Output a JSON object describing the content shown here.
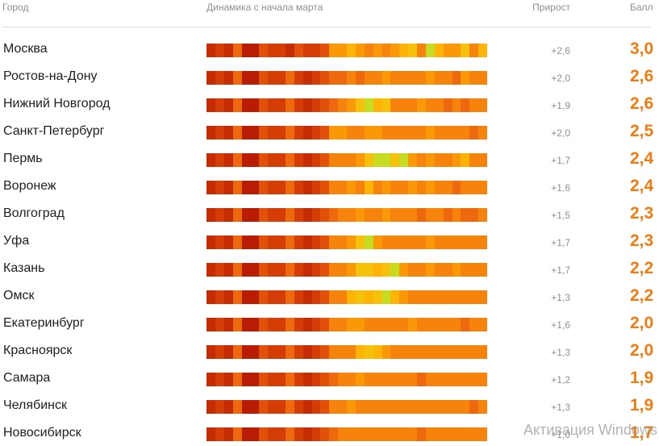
{
  "header": {
    "city": "Город",
    "dynamics": "Динамика с начала марта",
    "growth": "Прирост",
    "score": "Балл"
  },
  "colors": {
    "score": "#f07c10",
    "palette": [
      "#b81d04",
      "#c62c04",
      "#d43d06",
      "#e2510a",
      "#ee690e",
      "#f5830c",
      "#fb9808",
      "#fdb406",
      "#f5c10a",
      "#c5dc22"
    ]
  },
  "rows": [
    {
      "city": "Москва",
      "growth": "+2,6",
      "score": "3,0",
      "cells": [
        1,
        2,
        1,
        4,
        0,
        0,
        3,
        2,
        2,
        1,
        3,
        2,
        2,
        3,
        6,
        6,
        7,
        6,
        5,
        6,
        5,
        6,
        7,
        8,
        5,
        9,
        7,
        6,
        6,
        8,
        5,
        7
      ]
    },
    {
      "city": "Ростов-на-Дону",
      "growth": "+2,0",
      "score": "2,6",
      "cells": [
        1,
        2,
        1,
        4,
        0,
        0,
        3,
        2,
        2,
        4,
        2,
        1,
        2,
        3,
        4,
        4,
        5,
        4,
        5,
        5,
        6,
        5,
        5,
        5,
        5,
        6,
        5,
        5,
        4,
        6,
        5,
        5
      ]
    },
    {
      "city": "Нижний Новгород",
      "growth": "+1,9",
      "score": "2,6",
      "cells": [
        1,
        2,
        1,
        4,
        0,
        0,
        3,
        2,
        2,
        4,
        2,
        1,
        2,
        3,
        4,
        5,
        6,
        8,
        9,
        7,
        8,
        5,
        5,
        5,
        6,
        5,
        5,
        4,
        5,
        4,
        5,
        5
      ]
    },
    {
      "city": "Санкт-Петербург",
      "growth": "+2,0",
      "score": "2,5",
      "cells": [
        1,
        2,
        1,
        4,
        0,
        0,
        3,
        2,
        2,
        4,
        2,
        1,
        2,
        3,
        6,
        6,
        5,
        5,
        6,
        6,
        5,
        5,
        5,
        5,
        5,
        6,
        5,
        5,
        5,
        5,
        4,
        5
      ]
    },
    {
      "city": "Пермь",
      "growth": "+1,7",
      "score": "2,4",
      "cells": [
        1,
        2,
        1,
        4,
        0,
        0,
        3,
        2,
        2,
        4,
        2,
        1,
        2,
        3,
        5,
        5,
        5,
        6,
        8,
        9,
        9,
        8,
        9,
        6,
        5,
        6,
        5,
        5,
        6,
        7,
        5,
        5
      ]
    },
    {
      "city": "Воронеж",
      "growth": "+1,6",
      "score": "2,4",
      "cells": [
        1,
        2,
        1,
        4,
        0,
        0,
        3,
        2,
        2,
        4,
        2,
        1,
        2,
        3,
        5,
        5,
        6,
        5,
        7,
        5,
        6,
        5,
        5,
        6,
        5,
        6,
        5,
        5,
        4,
        5,
        5,
        5
      ]
    },
    {
      "city": "Волгоград",
      "growth": "+1,5",
      "score": "2,3",
      "cells": [
        1,
        2,
        1,
        4,
        0,
        0,
        3,
        2,
        2,
        4,
        2,
        1,
        2,
        3,
        4,
        5,
        5,
        6,
        5,
        5,
        6,
        5,
        5,
        5,
        4,
        5,
        5,
        4,
        5,
        4,
        4,
        5
      ]
    },
    {
      "city": "Уфа",
      "growth": "+1,7",
      "score": "2,3",
      "cells": [
        1,
        2,
        1,
        4,
        0,
        0,
        3,
        2,
        2,
        4,
        2,
        1,
        2,
        3,
        5,
        5,
        6,
        8,
        9,
        6,
        5,
        5,
        5,
        5,
        5,
        6,
        5,
        5,
        5,
        5,
        5,
        5
      ]
    },
    {
      "city": "Казань",
      "growth": "+1,7",
      "score": "2,2",
      "cells": [
        1,
        2,
        1,
        4,
        0,
        0,
        3,
        2,
        2,
        4,
        2,
        1,
        2,
        3,
        5,
        5,
        6,
        8,
        8,
        7,
        8,
        9,
        6,
        5,
        5,
        6,
        5,
        5,
        6,
        5,
        5,
        5
      ]
    },
    {
      "city": "Омск",
      "growth": "+1,3",
      "score": "2,2",
      "cells": [
        1,
        2,
        1,
        4,
        0,
        0,
        3,
        2,
        2,
        4,
        2,
        1,
        2,
        3,
        5,
        5,
        7,
        8,
        7,
        8,
        9,
        7,
        6,
        5,
        5,
        5,
        5,
        5,
        5,
        5,
        5,
        5
      ]
    },
    {
      "city": "Екатеринбург",
      "growth": "+1,6",
      "score": "2,0",
      "cells": [
        1,
        2,
        1,
        4,
        0,
        0,
        3,
        2,
        2,
        4,
        2,
        1,
        2,
        3,
        5,
        5,
        6,
        6,
        5,
        5,
        5,
        5,
        5,
        6,
        5,
        5,
        5,
        5,
        5,
        4,
        5,
        5
      ]
    },
    {
      "city": "Красноярск",
      "growth": "+1,3",
      "score": "2,0",
      "cells": [
        1,
        2,
        1,
        4,
        0,
        0,
        3,
        2,
        2,
        4,
        2,
        1,
        2,
        3,
        5,
        5,
        5,
        7,
        8,
        7,
        6,
        5,
        5,
        5,
        5,
        5,
        5,
        5,
        5,
        5,
        5,
        5
      ]
    },
    {
      "city": "Самара",
      "growth": "+1,2",
      "score": "1,9",
      "cells": [
        1,
        2,
        1,
        4,
        0,
        0,
        3,
        2,
        2,
        4,
        2,
        1,
        2,
        3,
        4,
        5,
        5,
        6,
        5,
        5,
        5,
        5,
        5,
        5,
        4,
        5,
        5,
        5,
        5,
        5,
        5,
        5
      ]
    },
    {
      "city": "Челябинск",
      "growth": "+1,3",
      "score": "1,9",
      "cells": [
        1,
        2,
        1,
        4,
        0,
        0,
        3,
        2,
        2,
        4,
        2,
        1,
        2,
        3,
        5,
        5,
        6,
        5,
        5,
        5,
        5,
        5,
        5,
        5,
        5,
        5,
        5,
        5,
        5,
        5,
        4,
        5
      ]
    },
    {
      "city": "Новосибирск",
      "growth": "+1,0",
      "score": "1,7",
      "cells": [
        1,
        2,
        1,
        4,
        0,
        0,
        3,
        2,
        2,
        4,
        2,
        1,
        2,
        3,
        4,
        5,
        5,
        5,
        5,
        5,
        5,
        5,
        5,
        5,
        4,
        5,
        5,
        5,
        5,
        5,
        5,
        5
      ]
    }
  ],
  "watermark": "Активация Windows"
}
